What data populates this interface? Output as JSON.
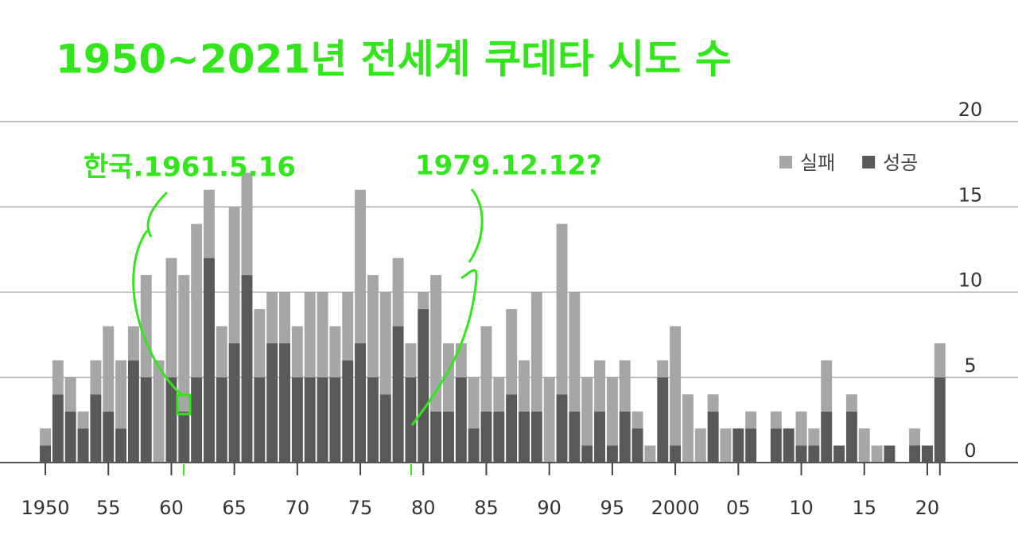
{
  "chart_data": {
    "type": "stacked_bar",
    "title": "1950~2021년 전세계 쿠데타 시도 수",
    "annotations": [
      "한국.1961.5.16",
      "1979.12.12?"
    ],
    "x": [
      1950,
      1951,
      1952,
      1953,
      1954,
      1955,
      1956,
      1957,
      1958,
      1959,
      1960,
      1961,
      1962,
      1963,
      1964,
      1965,
      1966,
      1967,
      1968,
      1969,
      1970,
      1971,
      1972,
      1973,
      1974,
      1975,
      1976,
      1977,
      1978,
      1979,
      1980,
      1981,
      1982,
      1983,
      1984,
      1985,
      1986,
      1987,
      1988,
      1989,
      1990,
      1991,
      1992,
      1993,
      1994,
      1995,
      1996,
      1997,
      1998,
      1999,
      2000,
      2001,
      2002,
      2003,
      2004,
      2005,
      2006,
      2007,
      2008,
      2009,
      2010,
      2011,
      2012,
      2013,
      2014,
      2015,
      2016,
      2017,
      2018,
      2019,
      2020,
      2021
    ],
    "series": [
      {
        "name": "실패",
        "color": "#a6a6a6",
        "values": [
          1,
          2,
          2,
          1,
          2,
          5,
          4,
          2,
          6,
          6,
          7,
          8,
          9,
          4,
          3,
          8,
          6,
          4,
          3,
          3,
          3,
          5,
          5,
          3,
          4,
          9,
          6,
          6,
          4,
          2,
          1,
          8,
          4,
          2,
          3,
          5,
          2,
          5,
          3,
          7,
          5,
          10,
          7,
          4,
          3,
          4,
          3,
          1,
          1,
          1,
          7,
          4,
          2,
          1,
          2,
          0,
          1,
          0,
          1,
          0,
          2,
          1,
          3,
          0,
          1,
          2,
          1,
          0,
          0,
          1,
          0,
          2
        ]
      },
      {
        "name": "성공",
        "color": "#595959",
        "values": [
          1,
          4,
          3,
          2,
          4,
          3,
          2,
          6,
          5,
          0,
          5,
          3,
          5,
          12,
          5,
          7,
          11,
          5,
          7,
          7,
          5,
          5,
          5,
          5,
          6,
          7,
          5,
          4,
          8,
          5,
          9,
          3,
          3,
          5,
          2,
          3,
          3,
          4,
          3,
          3,
          0,
          4,
          3,
          1,
          3,
          1,
          3,
          2,
          0,
          5,
          1,
          0,
          0,
          3,
          0,
          2,
          2,
          0,
          2,
          2,
          1,
          1,
          3,
          1,
          3,
          0,
          0,
          1,
          0,
          1,
          1,
          5
        ]
      }
    ],
    "xlim": [
      1946.4,
      2027.2
    ],
    "xticks": [
      {
        "value": 1950,
        "label": "1950"
      },
      {
        "value": 1955,
        "label": "55"
      },
      {
        "value": 1960,
        "label": "60"
      },
      {
        "value": 1965,
        "label": "65"
      },
      {
        "value": 1970,
        "label": "70"
      },
      {
        "value": 1975,
        "label": "75"
      },
      {
        "value": 1980,
        "label": "80"
      },
      {
        "value": 1985,
        "label": "85"
      },
      {
        "value": 1990,
        "label": "90"
      },
      {
        "value": 1995,
        "label": "95"
      },
      {
        "value": 2000,
        "label": "2000"
      },
      {
        "value": 2005,
        "label": "05"
      },
      {
        "value": 2010,
        "label": "10"
      },
      {
        "value": 2015,
        "label": "15"
      },
      {
        "value": 2020,
        "label": "20"
      }
    ],
    "ylim": [
      0,
      20
    ],
    "yticks": [
      0,
      5,
      10,
      15,
      20
    ],
    "grid": true
  }
}
